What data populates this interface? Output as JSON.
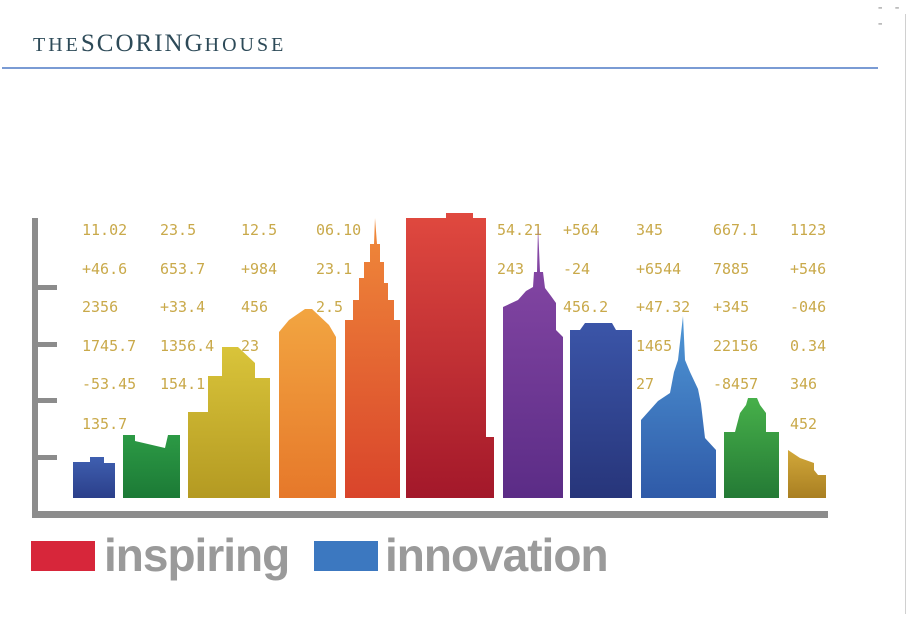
{
  "header": {
    "the": "THE",
    "scoring": "SCORING",
    "house": "HOUSE"
  },
  "corner_mark": "- - -",
  "legend": [
    {
      "label": "inspiring",
      "color": "#d7263a"
    },
    {
      "label": "innovation",
      "color": "#3c78c0"
    }
  ],
  "number_grid": [
    [
      "11.02",
      "23.5",
      "12.5",
      "06.10",
      "",
      "54.21",
      "+564",
      "345",
      "667.1",
      "1123"
    ],
    [
      "+46.6",
      "653.7",
      "+984",
      "23.1",
      "",
      "243",
      "-24",
      "+6544",
      "7885",
      "+546"
    ],
    [
      "2356",
      "+33.4",
      "456",
      "2.5",
      "",
      "",
      "456.2",
      "+47.32",
      "+345",
      "-046"
    ],
    [
      "1745.7",
      "1356.4",
      "23",
      "",
      "",
      "",
      "",
      "1465",
      "22156",
      "0.34"
    ],
    [
      "-53.45",
      "154.1",
      "",
      "",
      "",
      "",
      "",
      "27",
      "-8457",
      "346"
    ],
    [
      "135.7",
      "",
      "",
      "",
      "",
      "",
      "",
      "",
      "",
      "452"
    ]
  ],
  "colors": {
    "number_color": "#c9a94a",
    "axis": "#8c8c8c",
    "rule": "#7a9bd4"
  }
}
